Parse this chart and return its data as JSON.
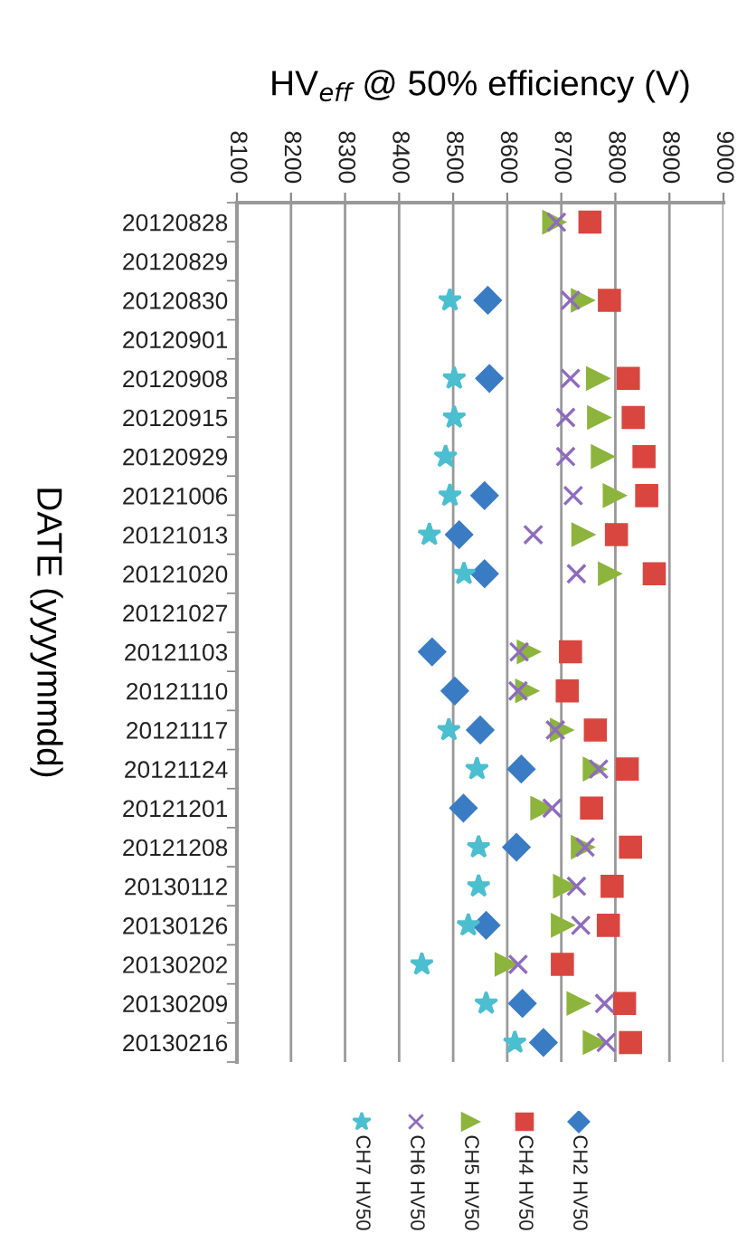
{
  "chart_data": {
    "type": "scatter",
    "orientation": "horizontal",
    "xlabel": "HV$_{eff}$ @ 50% efficiency (V)",
    "ylabel": "DATE (yyyymmdd)",
    "categories": [
      "20120828",
      "20120829",
      "20120830",
      "20120901",
      "20120908",
      "20120915",
      "20120929",
      "20121006",
      "20121013",
      "20121020",
      "20121027",
      "20121103",
      "20121110",
      "20121117",
      "20121124",
      "20121201",
      "20121208",
      "20130112",
      "20130126",
      "20130202",
      "20130209",
      "20130216"
    ],
    "xlim": [
      8100,
      9000
    ],
    "xticks": [
      8100,
      8200,
      8300,
      8400,
      8500,
      8600,
      8700,
      8800,
      8900,
      9000
    ],
    "grid": "x",
    "legend": "bottom",
    "series": [
      {
        "name": "CH2 HV50",
        "color": "#3a7cc4",
        "marker": "diamond",
        "values": [
          null,
          null,
          8564,
          null,
          8567,
          null,
          null,
          8558,
          8511,
          8558,
          null,
          8461,
          8503,
          8550,
          8626,
          8519,
          8617,
          null,
          8561,
          null,
          8628,
          8667
        ]
      },
      {
        "name": "CH4 HV50",
        "color": "#d9463f",
        "marker": "square",
        "values": [
          8753,
          null,
          8789,
          null,
          8824,
          8833,
          8853,
          8858,
          8802,
          8872,
          null,
          8717,
          8711,
          8763,
          8822,
          8756,
          8828,
          8794,
          8787,
          8702,
          8817,
          8828
        ]
      },
      {
        "name": "CH5 HV50",
        "color": "#8db43c",
        "marker": "triangle",
        "values": [
          8686,
          null,
          8739,
          null,
          8767,
          8769,
          8776,
          8798,
          8740,
          8789,
          null,
          8639,
          8636,
          8700,
          8761,
          8664,
          8739,
          8706,
          8702,
          8598,
          8731,
          8761
        ]
      },
      {
        "name": "CH6 HV50",
        "color": "#8e6bbf",
        "marker": "cross",
        "values": [
          8691,
          null,
          8717,
          null,
          8717,
          8708,
          8708,
          8722,
          8648,
          8728,
          null,
          8622,
          8620,
          8689,
          8769,
          8683,
          8744,
          8728,
          8736,
          8620,
          8780,
          8783
        ]
      },
      {
        "name": "CH7 HV50",
        "color": "#4bbfd0",
        "marker": "star",
        "values": [
          null,
          null,
          8494,
          null,
          8502,
          8502,
          8486,
          8494,
          8456,
          8520,
          null,
          null,
          null,
          8492,
          8544,
          null,
          8547,
          8547,
          8528,
          8442,
          8561,
          8614
        ]
      }
    ]
  }
}
